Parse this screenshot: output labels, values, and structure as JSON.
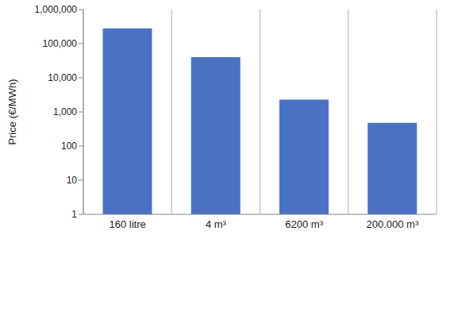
{
  "chart_data": {
    "type": "bar",
    "y_label": "Price (€/MWh)",
    "categories": [
      "160 litre",
      "4 m³",
      "6200 m³",
      "200.000 m³"
    ],
    "values": [
      280000,
      40000,
      2300,
      480
    ],
    "color": "#4a72c4",
    "log": "y",
    "ylim": [
      1,
      1000000
    ],
    "yticks": [
      1,
      10,
      100,
      {
        "value": 1000,
        "label": "1,000"
      },
      {
        "value": 10000,
        "label": "10,000"
      },
      {
        "value": 100000,
        "label": "100,000"
      },
      {
        "value": 1000000,
        "label": "1,000,000"
      }
    ],
    "grid": true
  }
}
